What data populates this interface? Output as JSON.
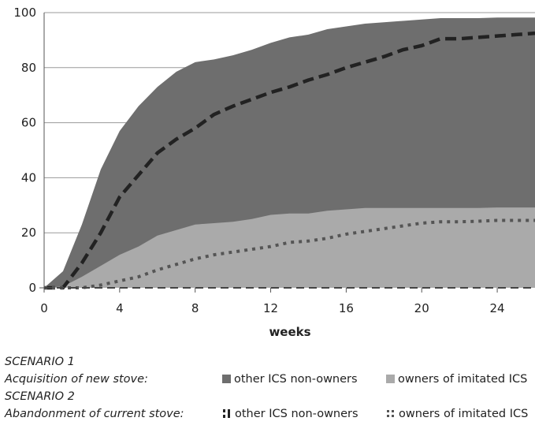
{
  "chart_data": {
    "type": "area",
    "xlabel": "weeks",
    "ylabel": "",
    "xlim": [
      0,
      26
    ],
    "ylim": [
      0,
      100
    ],
    "x_ticks": [
      0,
      4,
      8,
      12,
      16,
      20,
      24
    ],
    "y_ticks": [
      0,
      20,
      40,
      60,
      80,
      100
    ],
    "grid": "horizontal",
    "x": [
      0,
      1,
      2,
      3,
      4,
      5,
      6,
      7,
      8,
      9,
      10,
      11,
      12,
      13,
      14,
      15,
      16,
      17,
      18,
      19,
      20,
      21,
      22,
      23,
      24,
      25,
      26
    ],
    "series": [
      {
        "legend_ref": "scenario1.item1",
        "kind": "area",
        "color": "#6e6e6e",
        "values": [
          0,
          6,
          23,
          43,
          57,
          66,
          73,
          78.5,
          82,
          83,
          84.5,
          86.5,
          89,
          91,
          92,
          94,
          95,
          96,
          96.5,
          97,
          97.5,
          98,
          98,
          98,
          98.2,
          98.2,
          98.2
        ]
      },
      {
        "legend_ref": "scenario1.item2",
        "kind": "area",
        "color": "#aaaaaa",
        "values": [
          0,
          0.5,
          4,
          8,
          12,
          15,
          19,
          21,
          23,
          23.5,
          24,
          25,
          26.5,
          27,
          27,
          28,
          28.5,
          29,
          29,
          29,
          29,
          29,
          29,
          29,
          29.2,
          29.2,
          29.2
        ]
      },
      {
        "legend_ref": "scenario2.item1",
        "kind": "line",
        "style": "dashed",
        "color": "#222222",
        "values": [
          0,
          0,
          9,
          20,
          33,
          41,
          49,
          54,
          58,
          63,
          66,
          68.5,
          71,
          73,
          75.5,
          77.5,
          80,
          82,
          84,
          86.5,
          88,
          90.5,
          90.5,
          91,
          91.5,
          92,
          92.5
        ]
      },
      {
        "legend_ref": "scenario2.item2",
        "kind": "line",
        "style": "dotted",
        "color": "#555555",
        "values": [
          0,
          0,
          0,
          1,
          2.5,
          4,
          6.5,
          8.5,
          10.5,
          12,
          13,
          14,
          15,
          16.5,
          17,
          18,
          19.5,
          20.5,
          21.5,
          22.5,
          23.5,
          24,
          24,
          24.2,
          24.5,
          24.5,
          24.5
        ]
      }
    ]
  },
  "scenario1": {
    "title": "SCENARIO 1",
    "label": "Acquisition of new stove:",
    "item1": "other ICS non-owners",
    "item2": "owners of imitated ICS",
    "color1": "#6e6e6e",
    "color2": "#aaaaaa"
  },
  "scenario2": {
    "title": "SCENARIO 2",
    "label": "Abandonment of current stove:",
    "item1": "other ICS non-owners",
    "item2": "owners of imitated ICS"
  }
}
